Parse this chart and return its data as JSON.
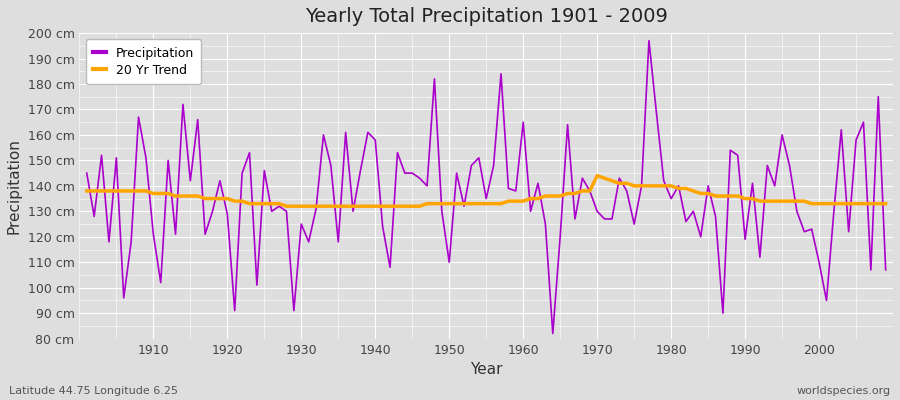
{
  "title": "Yearly Total Precipitation 1901 - 2009",
  "xlabel": "Year",
  "ylabel": "Precipitation",
  "subtitle_left": "Latitude 44.75 Longitude 6.25",
  "subtitle_right": "worldspecies.org",
  "line_color": "#AA00CC",
  "trend_color": "#FFA500",
  "background_color": "#DEDEDE",
  "plot_bg_color": "#DEDEDE",
  "ylim": [
    80,
    200
  ],
  "yticks": [
    80,
    90,
    100,
    110,
    120,
    130,
    140,
    150,
    160,
    170,
    180,
    190,
    200
  ],
  "xticks": [
    1910,
    1920,
    1930,
    1940,
    1950,
    1960,
    1970,
    1980,
    1990,
    2000
  ],
  "years": [
    1901,
    1902,
    1903,
    1904,
    1905,
    1906,
    1907,
    1908,
    1909,
    1910,
    1911,
    1912,
    1913,
    1914,
    1915,
    1916,
    1917,
    1918,
    1919,
    1920,
    1921,
    1922,
    1923,
    1924,
    1925,
    1926,
    1927,
    1928,
    1929,
    1930,
    1931,
    1932,
    1933,
    1934,
    1935,
    1936,
    1937,
    1938,
    1939,
    1940,
    1941,
    1942,
    1943,
    1944,
    1945,
    1946,
    1947,
    1948,
    1949,
    1950,
    1951,
    1952,
    1953,
    1954,
    1955,
    1956,
    1957,
    1958,
    1959,
    1960,
    1961,
    1962,
    1963,
    1964,
    1965,
    1966,
    1967,
    1968,
    1969,
    1970,
    1971,
    1972,
    1973,
    1974,
    1975,
    1976,
    1977,
    1978,
    1979,
    1980,
    1981,
    1982,
    1983,
    1984,
    1985,
    1986,
    1987,
    1988,
    1989,
    1990,
    1991,
    1992,
    1993,
    1994,
    1995,
    1996,
    1997,
    1998,
    1999,
    2000,
    2001,
    2002,
    2003,
    2004,
    2005,
    2006,
    2007,
    2008,
    2009
  ],
  "precip": [
    145,
    128,
    152,
    118,
    151,
    96,
    118,
    167,
    151,
    121,
    102,
    150,
    121,
    172,
    142,
    166,
    121,
    130,
    142,
    129,
    91,
    145,
    153,
    101,
    146,
    130,
    132,
    130,
    91,
    125,
    118,
    131,
    160,
    148,
    118,
    161,
    130,
    146,
    161,
    158,
    124,
    108,
    153,
    145,
    145,
    143,
    140,
    182,
    130,
    110,
    145,
    132,
    148,
    151,
    135,
    148,
    184,
    139,
    138,
    165,
    130,
    141,
    125,
    82,
    120,
    164,
    127,
    143,
    138,
    130,
    127,
    127,
    143,
    138,
    125,
    140,
    197,
    169,
    142,
    135,
    140,
    126,
    130,
    120,
    140,
    128,
    90,
    154,
    152,
    119,
    141,
    112,
    148,
    140,
    160,
    148,
    130,
    122,
    123,
    110,
    95,
    130,
    162,
    122,
    158,
    165,
    107,
    175,
    107
  ],
  "trend": [
    138,
    138,
    138,
    138,
    138,
    138,
    138,
    138,
    138,
    137,
    137,
    137,
    136,
    136,
    136,
    136,
    135,
    135,
    135,
    135,
    134,
    134,
    133,
    133,
    133,
    133,
    133,
    132,
    132,
    132,
    132,
    132,
    132,
    132,
    132,
    132,
    132,
    132,
    132,
    132,
    132,
    132,
    132,
    132,
    132,
    132,
    133,
    133,
    133,
    133,
    133,
    133,
    133,
    133,
    133,
    133,
    133,
    134,
    134,
    134,
    135,
    135,
    136,
    136,
    136,
    137,
    137,
    138,
    138,
    144,
    143,
    142,
    141,
    141,
    140,
    140,
    140,
    140,
    140,
    140,
    139,
    139,
    138,
    137,
    137,
    136,
    136,
    136,
    136,
    135,
    135,
    134,
    134,
    134,
    134,
    134,
    134,
    134,
    133,
    133,
    133,
    133,
    133,
    133,
    133,
    133,
    133,
    133,
    133
  ],
  "figsize": [
    9.0,
    4.0
  ],
  "dpi": 100
}
